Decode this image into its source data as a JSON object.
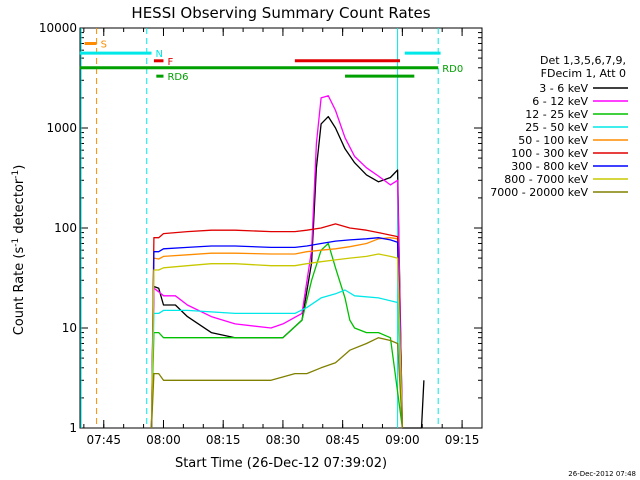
{
  "chart_data": {
    "type": "line",
    "title": "HESSI Observing Summary Count Rates",
    "xlabel": "Start Time (26-Dec-12 07:39:02)",
    "ylabel_main": "Count Rate (s",
    "ylabel_sup1": "-1",
    "ylabel_mid": " detector",
    "ylabel_sup2": "-1",
    "ylabel_end": ")",
    "y_scale": "log",
    "ylim": [
      1,
      10000
    ],
    "xlim": [
      "07:39:02",
      "09:20:00"
    ],
    "x_tick_labels": [
      "07:45",
      "08:00",
      "08:15",
      "08:30",
      "08:45",
      "09:00",
      "09:15"
    ],
    "y_tick_labels": [
      "1",
      "10",
      "100",
      "1000",
      "10000"
    ],
    "legend_header": [
      "Det 1,3,5,6,7,9,",
      "FDecim 1, Att 0"
    ],
    "series": [
      {
        "name": "3 - 6 keV",
        "color": "#000000",
        "points": [
          [
            7.95,
            0
          ],
          [
            7.96,
            26
          ],
          [
            7.98,
            25
          ],
          [
            8.0,
            17
          ],
          [
            8.05,
            17
          ],
          [
            8.1,
            13
          ],
          [
            8.2,
            9
          ],
          [
            8.3,
            8
          ],
          [
            8.45,
            8
          ],
          [
            8.5,
            8
          ],
          [
            8.58,
            12
          ],
          [
            8.62,
            45
          ],
          [
            8.64,
            400
          ],
          [
            8.66,
            1100
          ],
          [
            8.69,
            1300
          ],
          [
            8.72,
            1000
          ],
          [
            8.76,
            620
          ],
          [
            8.8,
            450
          ],
          [
            8.85,
            340
          ],
          [
            8.9,
            290
          ],
          [
            8.95,
            320
          ],
          [
            8.98,
            380
          ],
          [
            9.0,
            0
          ],
          [
            9.08,
            0
          ],
          [
            9.09,
            3
          ]
        ]
      },
      {
        "name": "6 - 12 keV",
        "color": "#ff00ff",
        "points": [
          [
            7.95,
            0
          ],
          [
            7.96,
            25
          ],
          [
            7.98,
            23
          ],
          [
            8.0,
            21
          ],
          [
            8.05,
            21
          ],
          [
            8.1,
            17
          ],
          [
            8.2,
            13
          ],
          [
            8.3,
            11
          ],
          [
            8.45,
            10
          ],
          [
            8.5,
            11
          ],
          [
            8.58,
            14
          ],
          [
            8.62,
            60
          ],
          [
            8.64,
            700
          ],
          [
            8.66,
            2000
          ],
          [
            8.69,
            2100
          ],
          [
            8.72,
            1500
          ],
          [
            8.76,
            800
          ],
          [
            8.8,
            520
          ],
          [
            8.85,
            400
          ],
          [
            8.9,
            330
          ],
          [
            8.95,
            270
          ],
          [
            8.98,
            300
          ],
          [
            9.0,
            0
          ]
        ]
      },
      {
        "name": "12 - 25 keV",
        "color": "#00c000",
        "points": [
          [
            7.95,
            0
          ],
          [
            7.96,
            9
          ],
          [
            7.98,
            9
          ],
          [
            8.0,
            8
          ],
          [
            8.1,
            8
          ],
          [
            8.3,
            8
          ],
          [
            8.45,
            8
          ],
          [
            8.5,
            8
          ],
          [
            8.58,
            12
          ],
          [
            8.62,
            30
          ],
          [
            8.66,
            60
          ],
          [
            8.69,
            70
          ],
          [
            8.72,
            40
          ],
          [
            8.76,
            20
          ],
          [
            8.78,
            12
          ],
          [
            8.8,
            10
          ],
          [
            8.85,
            9
          ],
          [
            8.9,
            9
          ],
          [
            8.95,
            8
          ],
          [
            9.0,
            0
          ]
        ]
      },
      {
        "name": "25 - 50 keV",
        "color": "#00e8e8",
        "points": [
          [
            7.95,
            0
          ],
          [
            7.96,
            14
          ],
          [
            7.98,
            14
          ],
          [
            8.0,
            15
          ],
          [
            8.1,
            15
          ],
          [
            8.3,
            14
          ],
          [
            8.45,
            14
          ],
          [
            8.55,
            14
          ],
          [
            8.6,
            16
          ],
          [
            8.66,
            20
          ],
          [
            8.72,
            22
          ],
          [
            8.76,
            24
          ],
          [
            8.8,
            21
          ],
          [
            8.9,
            20
          ],
          [
            8.98,
            18
          ],
          [
            9.0,
            0
          ]
        ]
      },
      {
        "name": "50 - 100 keV",
        "color": "#ff8c00",
        "points": [
          [
            7.95,
            0
          ],
          [
            7.96,
            50
          ],
          [
            7.98,
            49
          ],
          [
            8.0,
            52
          ],
          [
            8.1,
            54
          ],
          [
            8.2,
            56
          ],
          [
            8.3,
            56
          ],
          [
            8.45,
            55
          ],
          [
            8.55,
            55
          ],
          [
            8.6,
            58
          ],
          [
            8.66,
            60
          ],
          [
            8.72,
            62
          ],
          [
            8.78,
            65
          ],
          [
            8.85,
            70
          ],
          [
            8.9,
            78
          ],
          [
            8.95,
            80
          ],
          [
            8.98,
            78
          ],
          [
            9.0,
            0
          ]
        ]
      },
      {
        "name": "100 - 300 keV",
        "color": "#e00000",
        "points": [
          [
            7.95,
            0
          ],
          [
            7.96,
            80
          ],
          [
            7.98,
            80
          ],
          [
            8.0,
            88
          ],
          [
            8.1,
            92
          ],
          [
            8.2,
            95
          ],
          [
            8.3,
            95
          ],
          [
            8.45,
            92
          ],
          [
            8.55,
            92
          ],
          [
            8.6,
            95
          ],
          [
            8.66,
            100
          ],
          [
            8.72,
            110
          ],
          [
            8.78,
            100
          ],
          [
            8.85,
            95
          ],
          [
            8.9,
            90
          ],
          [
            8.95,
            85
          ],
          [
            8.98,
            82
          ],
          [
            9.0,
            0
          ]
        ]
      },
      {
        "name": "300 - 800 keV",
        "color": "#0000ff",
        "points": [
          [
            7.95,
            0
          ],
          [
            7.96,
            58
          ],
          [
            7.98,
            58
          ],
          [
            8.0,
            62
          ],
          [
            8.1,
            64
          ],
          [
            8.2,
            66
          ],
          [
            8.3,
            66
          ],
          [
            8.45,
            64
          ],
          [
            8.55,
            64
          ],
          [
            8.6,
            66
          ],
          [
            8.66,
            70
          ],
          [
            8.72,
            74
          ],
          [
            8.78,
            76
          ],
          [
            8.85,
            78
          ],
          [
            8.9,
            80
          ],
          [
            8.95,
            76
          ],
          [
            8.98,
            72
          ],
          [
            9.0,
            0
          ]
        ]
      },
      {
        "name": "800 - 7000 keV",
        "color": "#c8c800",
        "points": [
          [
            7.95,
            0
          ],
          [
            7.96,
            38
          ],
          [
            7.98,
            38
          ],
          [
            8.0,
            40
          ],
          [
            8.1,
            42
          ],
          [
            8.2,
            44
          ],
          [
            8.3,
            44
          ],
          [
            8.45,
            42
          ],
          [
            8.55,
            42
          ],
          [
            8.6,
            44
          ],
          [
            8.66,
            46
          ],
          [
            8.72,
            48
          ],
          [
            8.78,
            50
          ],
          [
            8.85,
            52
          ],
          [
            8.9,
            55
          ],
          [
            8.95,
            52
          ],
          [
            8.98,
            50
          ],
          [
            9.0,
            0
          ]
        ]
      },
      {
        "name": "7000 - 20000 keV",
        "color": "#808000",
        "points": [
          [
            7.95,
            0
          ],
          [
            7.96,
            3.5
          ],
          [
            7.98,
            3.5
          ],
          [
            8.0,
            3
          ],
          [
            8.1,
            3
          ],
          [
            8.2,
            3
          ],
          [
            8.3,
            3
          ],
          [
            8.45,
            3
          ],
          [
            8.55,
            3.5
          ],
          [
            8.6,
            3.5
          ],
          [
            8.66,
            4
          ],
          [
            8.72,
            4.5
          ],
          [
            8.78,
            6
          ],
          [
            8.85,
            7
          ],
          [
            8.9,
            8
          ],
          [
            8.95,
            7.5
          ],
          [
            8.98,
            7
          ],
          [
            9.0,
            0
          ]
        ]
      }
    ],
    "flag_bars": [
      {
        "label": "S",
        "color": "#ff8c00",
        "x_start": 7.67,
        "x_end": 7.72,
        "y_level": 7000
      },
      {
        "label": "N",
        "color": "#00e8e8",
        "x_start": 7.65,
        "x_end": 7.95,
        "y_level": 5600
      },
      {
        "label": "F",
        "color": "#e00000",
        "x_start": 7.96,
        "x_end": 8.0,
        "y_level": 4700
      },
      {
        "label": "RD0",
        "color": "#00a000",
        "x_start": 7.65,
        "x_end": 9.15,
        "y_level": 4000
      },
      {
        "label": "RD6",
        "color": "#00a000",
        "x_start": 7.97,
        "x_end": 8.0,
        "y_level": 3300
      }
    ],
    "flag_bar_extras": [
      {
        "color": "#e00000",
        "x_start": 8.55,
        "x_end": 8.99,
        "y_level": 4700
      },
      {
        "color": "#00e8e8",
        "x_start": 9.01,
        "x_end": 9.16,
        "y_level": 5600
      },
      {
        "color": "#00a000",
        "x_start": 8.76,
        "x_end": 9.05,
        "y_level": 3300
      }
    ],
    "vertical_markers": [
      {
        "x": 7.72,
        "color": "#ff8c00",
        "style": "dashed"
      },
      {
        "x": 7.93,
        "color": "#00e8e8",
        "style": "dashed"
      },
      {
        "x": 8.98,
        "color": "#00e8e8",
        "style": "solid"
      },
      {
        "x": 9.15,
        "color": "#00e8e8",
        "style": "dashed"
      },
      {
        "x": 7.655,
        "color": "#00e8e8",
        "style": "solid"
      }
    ],
    "grid": false,
    "legend_position": "right"
  },
  "footer_timestamp": "26-Dec-2012 07:48"
}
